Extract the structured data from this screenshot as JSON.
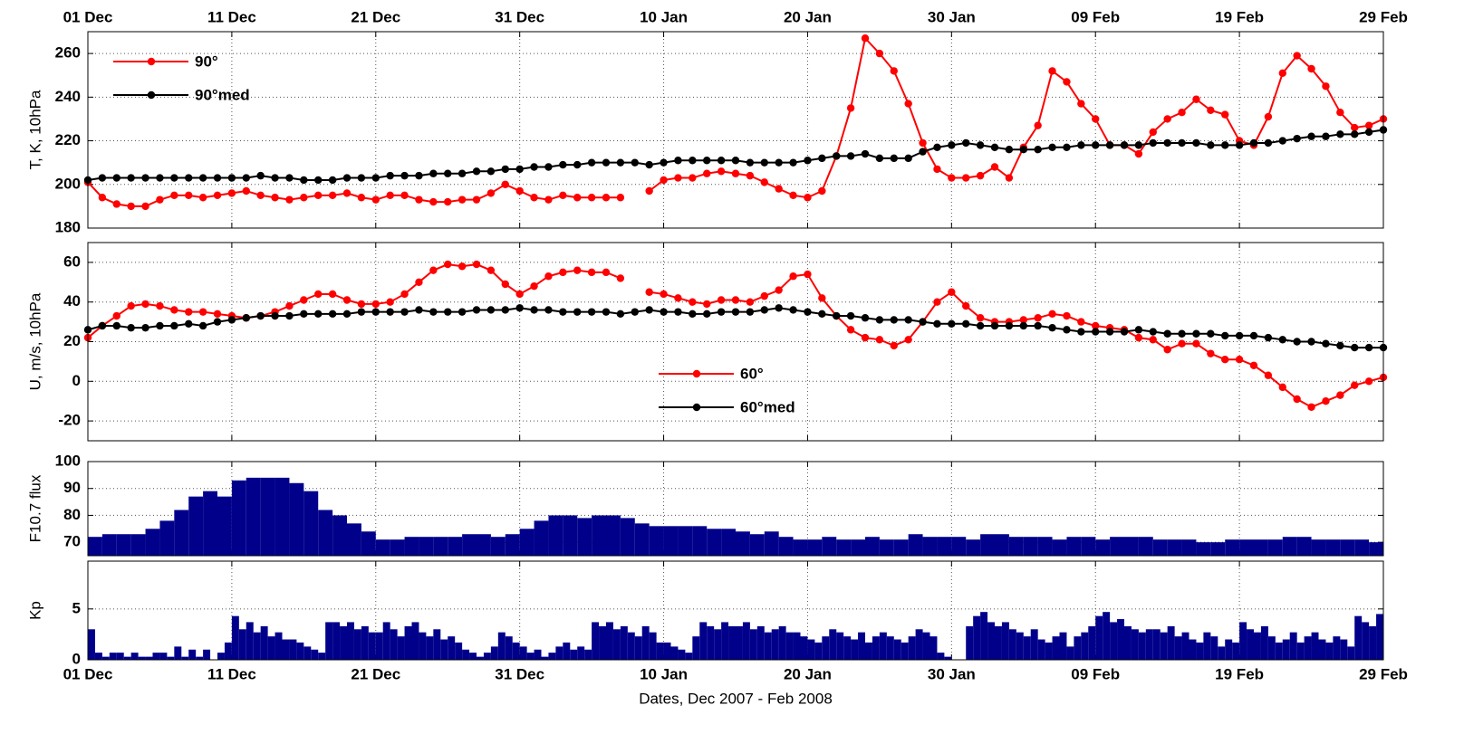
{
  "chart_data": [
    {
      "type": "line",
      "ylabel": "T, K, 10hPa",
      "xaxis": "top",
      "legend": "upper left",
      "grid": true,
      "x": [
        0,
        1,
        2,
        3,
        4,
        5,
        6,
        7,
        8,
        9,
        10,
        11,
        12,
        13,
        14,
        15,
        16,
        17,
        18,
        19,
        20,
        21,
        22,
        23,
        24,
        25,
        26,
        27,
        28,
        29,
        30,
        31,
        32,
        33,
        34,
        35,
        36,
        37,
        38,
        39,
        40,
        41,
        42,
        43,
        44,
        45,
        46,
        47,
        48,
        49,
        50,
        51,
        52,
        53,
        54,
        55,
        56,
        57,
        58,
        59,
        60,
        61,
        62,
        63,
        64,
        65,
        66,
        67,
        68,
        69,
        70,
        71,
        72,
        73,
        74,
        75,
        76,
        77,
        78,
        79,
        80,
        81,
        82,
        83,
        84,
        85,
        86,
        87,
        88,
        89,
        90
      ],
      "xlim": [
        0,
        90
      ],
      "xticks": [
        {
          "value": 0,
          "label": "01 Dec"
        },
        {
          "value": 10,
          "label": "11 Dec"
        },
        {
          "value": 20,
          "label": "21 Dec"
        },
        {
          "value": 30,
          "label": "31 Dec"
        },
        {
          "value": 40,
          "label": "10 Jan"
        },
        {
          "value": 50,
          "label": "20 Jan"
        },
        {
          "value": 60,
          "label": "30 Jan"
        },
        {
          "value": 70,
          "label": "09 Feb"
        },
        {
          "value": 80,
          "label": "19 Feb"
        },
        {
          "value": 90,
          "label": "29 Feb"
        }
      ],
      "ylim": [
        180,
        270
      ],
      "yticks": [
        180,
        200,
        220,
        240,
        260
      ],
      "series": [
        {
          "name": "90°",
          "color": "#ff0000",
          "values": [
            201,
            194,
            191,
            190,
            190,
            193,
            195,
            195,
            194,
            195,
            196,
            197,
            195,
            194,
            193,
            194,
            195,
            195,
            196,
            194,
            193,
            195,
            195,
            193,
            192,
            192,
            193,
            193,
            196,
            200,
            197,
            194,
            193,
            195,
            194,
            194,
            194,
            194,
            null,
            197,
            202,
            203,
            203,
            205,
            206,
            205,
            204,
            201,
            198,
            195,
            194,
            197,
            213,
            235,
            267,
            260,
            252,
            237,
            219,
            207,
            203,
            203,
            204,
            208,
            203,
            217,
            227,
            252,
            247,
            237,
            230,
            218,
            218,
            214,
            224,
            230,
            233,
            239,
            234,
            232,
            220,
            218,
            231,
            251,
            259,
            253,
            245,
            233,
            226,
            227,
            230
          ]
        },
        {
          "name": "90°med",
          "color": "#000000",
          "values": [
            202,
            203,
            203,
            203,
            203,
            203,
            203,
            203,
            203,
            203,
            203,
            203,
            204,
            203,
            203,
            202,
            202,
            202,
            203,
            203,
            203,
            204,
            204,
            204,
            205,
            205,
            205,
            206,
            206,
            207,
            207,
            208,
            208,
            209,
            209,
            210,
            210,
            210,
            210,
            209,
            210,
            211,
            211,
            211,
            211,
            211,
            210,
            210,
            210,
            210,
            211,
            212,
            213,
            213,
            214,
            212,
            212,
            212,
            215,
            217,
            218,
            219,
            218,
            217,
            216,
            216,
            216,
            217,
            217,
            218,
            218,
            218,
            218,
            218,
            219,
            219,
            219,
            219,
            218,
            218,
            218,
            219,
            219,
            220,
            221,
            222,
            222,
            223,
            223,
            224,
            225
          ]
        }
      ]
    },
    {
      "type": "line",
      "ylabel": "U, m/s, 10hPa",
      "legend": "center",
      "grid": true,
      "x": [
        0,
        1,
        2,
        3,
        4,
        5,
        6,
        7,
        8,
        9,
        10,
        11,
        12,
        13,
        14,
        15,
        16,
        17,
        18,
        19,
        20,
        21,
        22,
        23,
        24,
        25,
        26,
        27,
        28,
        29,
        30,
        31,
        32,
        33,
        34,
        35,
        36,
        37,
        38,
        39,
        40,
        41,
        42,
        43,
        44,
        45,
        46,
        47,
        48,
        49,
        50,
        51,
        52,
        53,
        54,
        55,
        56,
        57,
        58,
        59,
        60,
        61,
        62,
        63,
        64,
        65,
        66,
        67,
        68,
        69,
        70,
        71,
        72,
        73,
        74,
        75,
        76,
        77,
        78,
        79,
        80,
        81,
        82,
        83,
        84,
        85,
        86,
        87,
        88,
        89,
        90
      ],
      "xlim": [
        0,
        90
      ],
      "xticks": [
        0,
        10,
        20,
        30,
        40,
        50,
        60,
        70,
        80,
        90
      ],
      "ylim": [
        -30,
        70
      ],
      "yticks": [
        -20,
        0,
        20,
        40,
        60
      ],
      "series": [
        {
          "name": "60°",
          "color": "#ff0000",
          "values": [
            22,
            28,
            33,
            38,
            39,
            38,
            36,
            35,
            35,
            34,
            33,
            32,
            33,
            35,
            38,
            41,
            44,
            44,
            41,
            39,
            39,
            40,
            44,
            50,
            56,
            59,
            58,
            59,
            56,
            49,
            44,
            48,
            53,
            55,
            56,
            55,
            55,
            52,
            null,
            45,
            44,
            42,
            40,
            39,
            41,
            41,
            40,
            43,
            46,
            53,
            54,
            42,
            33,
            26,
            22,
            21,
            18,
            21,
            30,
            40,
            45,
            38,
            32,
            30,
            30,
            31,
            32,
            34,
            33,
            30,
            28,
            27,
            26,
            22,
            21,
            16,
            19,
            19,
            14,
            11,
            11,
            8,
            3,
            -3,
            -9,
            -13,
            -10,
            -7,
            -2,
            0,
            2
          ]
        },
        {
          "name": "60°med",
          "color": "#000000",
          "values": [
            26,
            28,
            28,
            27,
            27,
            28,
            28,
            29,
            28,
            30,
            31,
            32,
            33,
            33,
            33,
            34,
            34,
            34,
            34,
            35,
            35,
            35,
            35,
            36,
            35,
            35,
            35,
            36,
            36,
            36,
            37,
            36,
            36,
            35,
            35,
            35,
            35,
            34,
            35,
            36,
            35,
            35,
            34,
            34,
            35,
            35,
            35,
            36,
            37,
            36,
            35,
            34,
            33,
            33,
            32,
            31,
            31,
            31,
            30,
            29,
            29,
            29,
            28,
            28,
            28,
            28,
            28,
            27,
            26,
            25,
            25,
            25,
            25,
            26,
            25,
            24,
            24,
            24,
            24,
            23,
            23,
            23,
            22,
            21,
            20,
            20,
            19,
            18,
            17,
            17,
            17
          ]
        }
      ]
    },
    {
      "type": "bar",
      "ylabel": "F10.7 flux",
      "color": "#00008b",
      "grid": true,
      "x": [
        0,
        1,
        2,
        3,
        4,
        5,
        6,
        7,
        8,
        9,
        10,
        11,
        12,
        13,
        14,
        15,
        16,
        17,
        18,
        19,
        20,
        21,
        22,
        23,
        24,
        25,
        26,
        27,
        28,
        29,
        30,
        31,
        32,
        33,
        34,
        35,
        36,
        37,
        38,
        39,
        40,
        41,
        42,
        43,
        44,
        45,
        46,
        47,
        48,
        49,
        50,
        51,
        52,
        53,
        54,
        55,
        56,
        57,
        58,
        59,
        60,
        61,
        62,
        63,
        64,
        65,
        66,
        67,
        68,
        69,
        70,
        71,
        72,
        73,
        74,
        75,
        76,
        77,
        78,
        79,
        80,
        81,
        82,
        83,
        84,
        85,
        86,
        87,
        88,
        89
      ],
      "values": [
        72,
        73,
        73,
        73,
        75,
        78,
        82,
        87,
        89,
        87,
        93,
        94,
        94,
        94,
        92,
        89,
        82,
        80,
        77,
        74,
        71,
        71,
        72,
        72,
        72,
        72,
        73,
        73,
        72,
        73,
        75,
        78,
        80,
        80,
        79,
        80,
        80,
        79,
        77,
        76,
        76,
        76,
        76,
        75,
        75,
        74,
        73,
        74,
        72,
        71,
        71,
        72,
        71,
        71,
        72,
        71,
        71,
        73,
        72,
        72,
        72,
        71,
        73,
        73,
        72,
        72,
        72,
        71,
        72,
        72,
        71,
        72,
        72,
        72,
        71,
        71,
        71,
        70,
        70,
        71,
        71,
        71,
        71,
        72,
        72,
        71,
        71,
        71,
        71,
        70
      ],
      "xlim": [
        0,
        90
      ],
      "xticks": [
        0,
        10,
        20,
        30,
        40,
        50,
        60,
        70,
        80,
        90
      ],
      "ylim": [
        65,
        100
      ],
      "yticks": [
        70,
        80,
        90,
        100
      ]
    },
    {
      "type": "bar",
      "ylabel": "Kp",
      "xlabel": "Dates, Dec 2007 - Feb 2008",
      "xaxis": "bottom",
      "color": "#00008b",
      "grid": true,
      "x": [
        0,
        0.5,
        1,
        1.5,
        2,
        2.5,
        3,
        3.5,
        4,
        4.5,
        5,
        5.5,
        6,
        6.5,
        7,
        7.5,
        8,
        8.5,
        9,
        9.5,
        10,
        10.5,
        11,
        11.5,
        12,
        12.5,
        13,
        13.5,
        14,
        14.5,
        15,
        15.5,
        16,
        16.5,
        17,
        17.5,
        18,
        18.5,
        19,
        19.5,
        20,
        20.5,
        21,
        21.5,
        22,
        22.5,
        23,
        23.5,
        24,
        24.5,
        25,
        25.5,
        26,
        26.5,
        27,
        27.5,
        28,
        28.5,
        29,
        29.5,
        30,
        30.5,
        31,
        31.5,
        32,
        32.5,
        33,
        33.5,
        34,
        34.5,
        35,
        35.5,
        36,
        36.5,
        37,
        37.5,
        38,
        38.5,
        39,
        39.5,
        40,
        40.5,
        41,
        41.5,
        42,
        42.5,
        43,
        43.5,
        44,
        44.5,
        45,
        45.5,
        46,
        46.5,
        47,
        47.5,
        48,
        48.5,
        49,
        49.5,
        50,
        50.5,
        51,
        51.5,
        52,
        52.5,
        53,
        53.5,
        54,
        54.5,
        55,
        55.5,
        56,
        56.5,
        57,
        57.5,
        58,
        58.5,
        59,
        59.5,
        60,
        60.5,
        61,
        61.5,
        62,
        62.5,
        63,
        63.5,
        64,
        64.5,
        65,
        65.5,
        66,
        66.5,
        67,
        67.5,
        68,
        68.5,
        69,
        69.5,
        70,
        70.5,
        71,
        71.5,
        72,
        72.5,
        73,
        73.5,
        74,
        74.5,
        75,
        75.5,
        76,
        76.5,
        77,
        77.5,
        78,
        78.5,
        79,
        79.5,
        80,
        80.5,
        81,
        81.5,
        82,
        82.5,
        83,
        83.5,
        84,
        84.5,
        85,
        85.5,
        86,
        86.5,
        87,
        87.5,
        88,
        88.5,
        89,
        89.5
      ],
      "values": [
        3,
        0.7,
        0.3,
        0.7,
        0.7,
        0.3,
        0.7,
        0.3,
        0.3,
        0.7,
        0.7,
        0.3,
        1.3,
        0.3,
        1,
        0.3,
        1,
        0,
        0.7,
        1.7,
        4.3,
        3,
        3.7,
        2.7,
        3.3,
        2.3,
        2.7,
        2,
        2,
        1.7,
        1.3,
        1,
        0.7,
        3.7,
        3.7,
        3.3,
        3.7,
        3,
        3.3,
        2.7,
        2.7,
        3.7,
        3,
        2.3,
        3.3,
        3.7,
        2.7,
        2.3,
        3,
        2,
        2.3,
        1.7,
        1,
        0.7,
        0.3,
        0.7,
        1.3,
        2.7,
        2.3,
        1.7,
        1.3,
        0.7,
        1,
        0.3,
        0.7,
        1.3,
        1.7,
        1,
        1.3,
        1,
        3.7,
        3.3,
        3.7,
        3,
        3.3,
        2.7,
        2.3,
        3.3,
        2.7,
        1.7,
        1.7,
        1.3,
        1,
        0.7,
        2.3,
        3.7,
        3.3,
        3,
        3.7,
        3.3,
        3.3,
        3.7,
        3,
        3.3,
        2.7,
        3,
        3.3,
        2.7,
        2.7,
        2.3,
        2,
        1.7,
        2.3,
        3,
        2.7,
        2.3,
        2,
        2.7,
        1.7,
        2.3,
        2.7,
        2.3,
        2,
        1.7,
        2.3,
        3,
        2.7,
        2.3,
        0.7,
        0.3,
        0,
        0,
        3.3,
        4.3,
        4.7,
        3.7,
        3.3,
        3.7,
        3,
        2.7,
        2.3,
        3,
        2,
        1.7,
        2.3,
        2.7,
        1.3,
        2.3,
        2.7,
        3.3,
        4.3,
        4.7,
        3.7,
        4,
        3.3,
        3,
        2.7,
        3,
        3,
        2.7,
        3.3,
        2.3,
        2.7,
        2,
        1.7,
        2.7,
        2.3,
        1.3,
        2,
        1.7,
        3.7,
        3,
        2.7,
        3.3,
        2.3,
        1.7,
        2,
        2.7,
        1.7,
        2.3,
        2.7,
        2,
        1.7,
        2.3,
        2,
        1.3,
        4.3,
        3.7,
        3.3,
        4.5
      ],
      "xlim": [
        0,
        90
      ],
      "xticks": [
        {
          "value": 0,
          "label": "01 Dec"
        },
        {
          "value": 10,
          "label": "11 Dec"
        },
        {
          "value": 20,
          "label": "21 Dec"
        },
        {
          "value": 30,
          "label": "31 Dec"
        },
        {
          "value": 40,
          "label": "10 Jan"
        },
        {
          "value": 50,
          "label": "20 Jan"
        },
        {
          "value": 60,
          "label": "30 Jan"
        },
        {
          "value": 70,
          "label": "09 Feb"
        },
        {
          "value": 80,
          "label": "19 Feb"
        },
        {
          "value": 90,
          "label": "29 Feb"
        }
      ],
      "ylim": [
        0,
        9.7
      ],
      "yticks": [
        0,
        5
      ]
    }
  ]
}
